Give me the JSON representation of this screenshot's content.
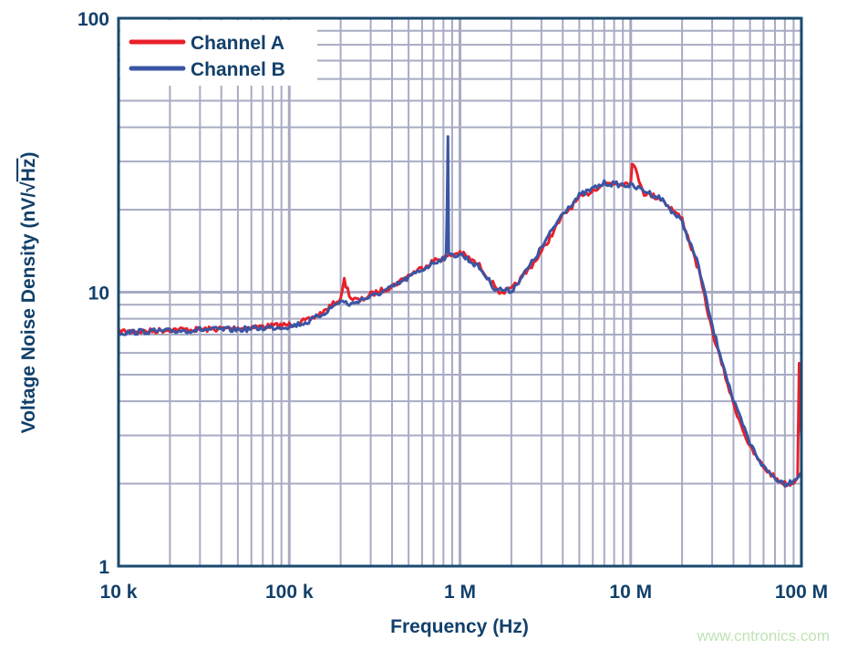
{
  "chart_data": {
    "type": "line",
    "title": "",
    "xlabel": "Frequency (Hz)",
    "ylabel_main": "Voltage Noise Density (nV/√",
    "ylabel_hz": "Hz",
    "ylabel_close": ")",
    "xscale": "log",
    "yscale": "log",
    "xlim": [
      10000,
      100000000
    ],
    "ylim": [
      1,
      100
    ],
    "grid": true,
    "legend_placement": "top-left",
    "xticks": [
      {
        "value": 10000,
        "label": "10 k"
      },
      {
        "value": 100000,
        "label": "100 k"
      },
      {
        "value": 1000000,
        "label": "1 M"
      },
      {
        "value": 10000000,
        "label": "10 M"
      },
      {
        "value": 100000000,
        "label": "100 M"
      }
    ],
    "yticks": [
      {
        "value": 100,
        "label": "100"
      },
      {
        "value": 10,
        "label": "10"
      },
      {
        "value": 1,
        "label": "1"
      }
    ],
    "series": [
      {
        "name": "Channel A",
        "color": "#e8202a",
        "x": [
          10000,
          15000,
          20000,
          30000,
          50000,
          70000,
          100000,
          130000,
          160000,
          200000,
          210000,
          230000,
          260000,
          300000,
          400000,
          500000,
          700000,
          1000000,
          1300000,
          1600000,
          1700000,
          2000000,
          2500000,
          3000000,
          4000000,
          5000000,
          7000000,
          10000000,
          10200000,
          12000000,
          15000000,
          20000000,
          25000000,
          30000000,
          35000000,
          40000000,
          50000000,
          60000000,
          70000000,
          80000000,
          90000000,
          95000000,
          97000000,
          98000000,
          100000000
        ],
        "y": [
          7.2,
          7.2,
          7.3,
          7.3,
          7.4,
          7.5,
          7.6,
          7.9,
          8.5,
          9.5,
          11,
          9.5,
          9.3,
          9.8,
          10.5,
          11.5,
          13,
          14,
          12.5,
          10.5,
          10,
          10.2,
          12,
          14,
          19,
          22,
          25,
          25,
          30,
          23,
          22,
          18.5,
          12,
          7.2,
          5.2,
          3.9,
          2.7,
          2.3,
          2.1,
          2.0,
          2.0,
          2.1,
          5.5,
          3.5,
          3.0
        ]
      },
      {
        "name": "Channel B",
        "color": "#3a55a4",
        "x": [
          10000,
          15000,
          20000,
          30000,
          50000,
          70000,
          100000,
          130000,
          160000,
          200000,
          230000,
          260000,
          300000,
          400000,
          500000,
          700000,
          830000,
          840000,
          850000,
          860000,
          870000,
          1000000,
          1300000,
          1600000,
          2000000,
          2500000,
          3000000,
          4000000,
          5000000,
          7000000,
          10000000,
          12000000,
          15000000,
          20000000,
          25000000,
          30000000,
          35000000,
          40000000,
          50000000,
          60000000,
          70000000,
          80000000,
          90000000,
          95000000,
          100000000
        ],
        "y": [
          7.1,
          7.2,
          7.2,
          7.3,
          7.3,
          7.4,
          7.5,
          7.8,
          8.4,
          9.3,
          9.0,
          9.4,
          9.6,
          10.4,
          11.3,
          12.8,
          13.5,
          20,
          37,
          14,
          13.5,
          13.8,
          12.3,
          10.3,
          10.1,
          12.2,
          14.5,
          19.5,
          22.5,
          25,
          24.5,
          23.5,
          22,
          18,
          12.5,
          7.5,
          5.4,
          4.0,
          2.8,
          2.3,
          2.1,
          2.0,
          2.05,
          2.1,
          2.2
        ]
      }
    ]
  },
  "watermark": "www.cntronics.com"
}
